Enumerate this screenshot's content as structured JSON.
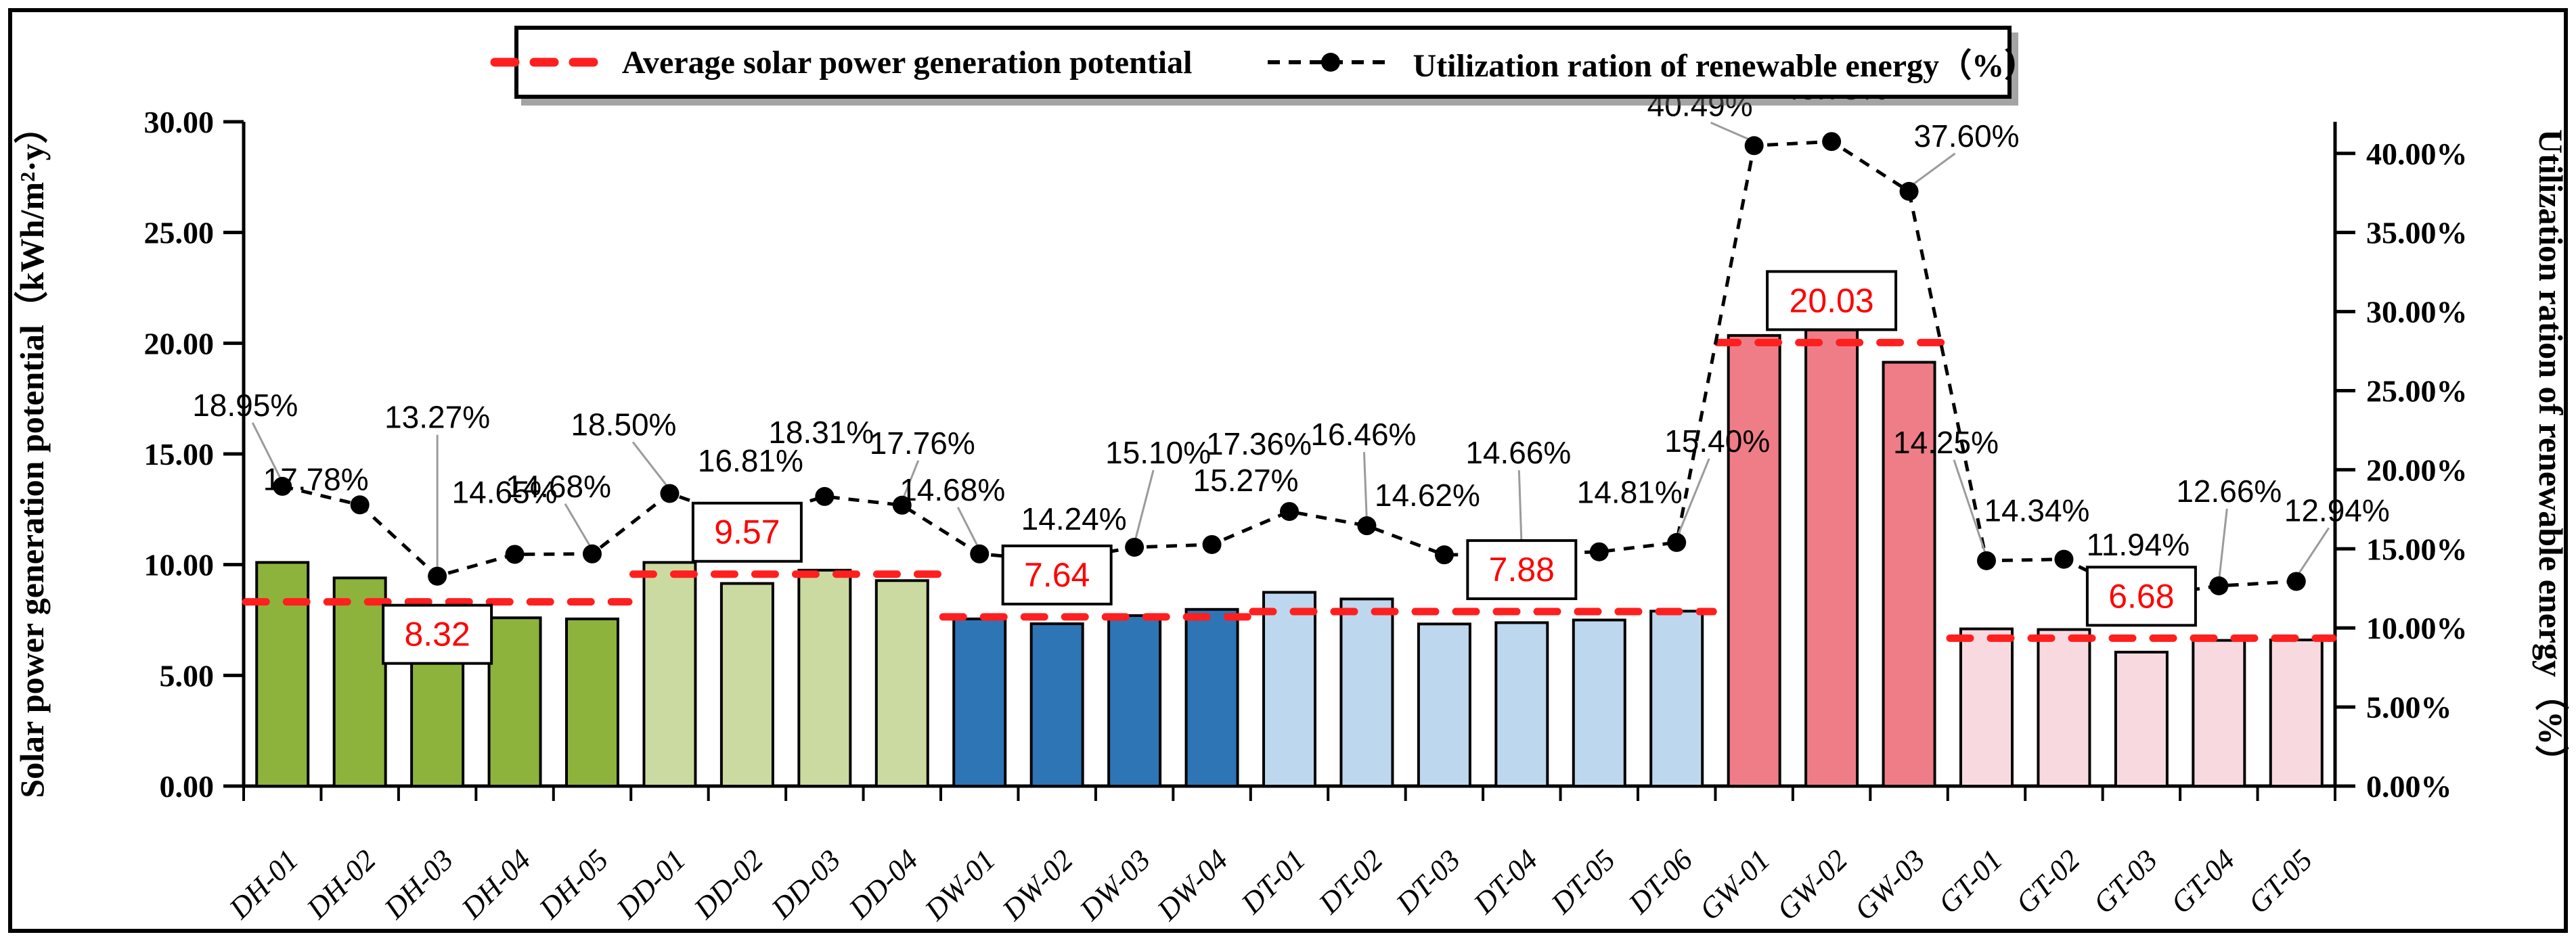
{
  "figure": {
    "legend": {
      "items": [
        {
          "label": "Average solar power generation potential",
          "marker": "red-dashed-line",
          "color": "#FF1F1F"
        },
        {
          "label": "Utilization ration of renewable energy（%）",
          "marker": "black-dashed-line-with-dot",
          "color": "#000000"
        }
      ],
      "position": "top-center"
    }
  },
  "chart_data": {
    "type": "bar",
    "overlay": "line",
    "grid": false,
    "categories": [
      "DH-01",
      "DH-02",
      "DH-03",
      "DH-04",
      "DH-05",
      "DD-01",
      "DD-02",
      "DD-03",
      "DD-04",
      "DW-01",
      "DW-02",
      "DW-03",
      "DW-04",
      "DT-01",
      "DT-02",
      "DT-03",
      "DT-04",
      "DT-05",
      "DT-06",
      "GW-01",
      "GW-02",
      "GW-03",
      "GT-01",
      "GT-02",
      "GT-03",
      "GT-04",
      "GT-05"
    ],
    "left_axis": {
      "title": "Solar power generation potential（kWh/m²·y）",
      "min": 0,
      "max": 30,
      "tick_labels": [
        "0.00",
        "5.00",
        "10.00",
        "15.00",
        "20.00",
        "25.00",
        "30.00"
      ]
    },
    "right_axis": {
      "title": "Utilization ration of renewable energy（%）",
      "min": 0,
      "max": 40,
      "tick_labels": [
        "0.00%",
        "5.00%",
        "10.00%",
        "15.00%",
        "20.00%",
        "25.00%",
        "30.00%",
        "35.00%",
        "40.00%"
      ]
    },
    "series": [
      {
        "name": "Solar power generation potential (kWh/m²·y)",
        "kind": "bar",
        "axis": "left",
        "values": [
          10.1,
          9.4,
          6.95,
          7.6,
          7.55,
          10.1,
          9.15,
          9.75,
          9.28,
          7.55,
          7.33,
          7.7,
          7.98,
          8.75,
          8.45,
          7.32,
          7.38,
          7.5,
          7.9,
          20.35,
          20.6,
          19.14,
          7.1,
          7.07,
          6.05,
          6.58,
          6.6
        ]
      },
      {
        "name": "Utilization ration of renewable energy（%）",
        "kind": "line",
        "axis": "right",
        "values": [
          18.95,
          17.78,
          13.27,
          14.65,
          14.68,
          18.5,
          16.81,
          18.31,
          17.76,
          14.68,
          14.24,
          15.1,
          15.27,
          17.36,
          16.46,
          14.62,
          14.66,
          14.81,
          15.4,
          40.49,
          40.75,
          37.6,
          14.25,
          14.34,
          11.94,
          12.66,
          12.94
        ],
        "point_labels": [
          "18.95%",
          "17.78%",
          "13.27%",
          "14.65%",
          "14.68%",
          "18.50%",
          "16.81%",
          "18.31%",
          "17.76%",
          "14.68%",
          "14.24%",
          "15.10%",
          "15.27%",
          "17.36%",
          "16.46%",
          "14.62%",
          "14.66%",
          "14.81%",
          "15.40%",
          "40.49%",
          "40.75%",
          "37.60%",
          "14.25%",
          "14.34%",
          "11.94%",
          "12.66%",
          "12.94%"
        ]
      }
    ],
    "groups": [
      {
        "name": "DH",
        "start": 0,
        "count": 5,
        "average": 8.32,
        "average_label": "8.32",
        "bar_color": "#8DB33C",
        "box_at_index": 2,
        "box_side": "below"
      },
      {
        "name": "DD",
        "start": 5,
        "count": 4,
        "average": 9.57,
        "average_label": "9.57",
        "bar_color": "#CBDAA0",
        "box_at_index": 6,
        "box_side": "above"
      },
      {
        "name": "DW",
        "start": 9,
        "count": 4,
        "average": 7.64,
        "average_label": "7.64",
        "bar_color": "#2E75B6",
        "box_at_index": 10,
        "box_side": "above"
      },
      {
        "name": "DT",
        "start": 13,
        "count": 6,
        "average": 7.88,
        "average_label": "7.88",
        "bar_color": "#BDD7EE",
        "box_at_index": 16,
        "box_side": "above"
      },
      {
        "name": "GW",
        "start": 19,
        "count": 3,
        "average": 20.03,
        "average_label": "20.03",
        "bar_color": "#EF7D87",
        "box_at_index": 20,
        "box_side": "above"
      },
      {
        "name": "GT",
        "start": 22,
        "count": 5,
        "average": 6.68,
        "average_label": "6.68",
        "bar_color": "#F9D9E0",
        "box_at_index": 24,
        "box_side": "above"
      }
    ],
    "colors": {
      "average_line": "#FF1F1F",
      "average_text": "#FF0000",
      "utilization_line": "#000000",
      "bar_outline": "#000000",
      "leader_line": "#9B9B9B"
    }
  }
}
